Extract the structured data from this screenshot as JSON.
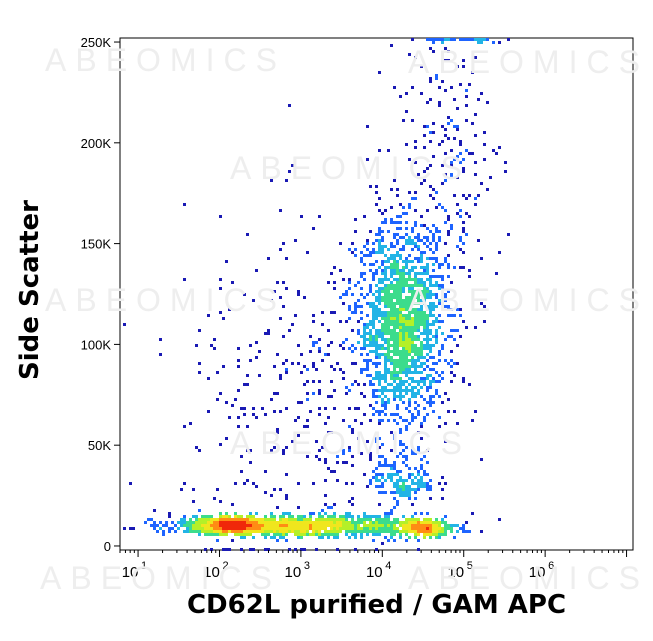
{
  "watermark": "ABEOMICS",
  "chart_data": {
    "type": "scatter",
    "title": "",
    "xlabel": "CD62L purified / GAM APC",
    "ylabel": "Side Scatter",
    "x_scale": "log",
    "xlim": [
      6,
      12000000
    ],
    "ylim": [
      -2000,
      252000
    ],
    "x_ticks": [
      {
        "value": 10,
        "base": "10",
        "exp": "1"
      },
      {
        "value": 100,
        "base": "10",
        "exp": "2"
      },
      {
        "value": 1000,
        "base": "10",
        "exp": "3"
      },
      {
        "value": 10000,
        "base": "10",
        "exp": "4"
      },
      {
        "value": 100000,
        "base": "10",
        "exp": "5"
      },
      {
        "value": 1000000,
        "base": "10",
        "exp": "6"
      }
    ],
    "y_ticks": [
      {
        "value": 0,
        "label": "0"
      },
      {
        "value": 50000,
        "label": "50K"
      },
      {
        "value": 100000,
        "label": "100K"
      },
      {
        "value": 150000,
        "label": "150K"
      },
      {
        "value": 200000,
        "label": "200K"
      },
      {
        "value": 250000,
        "label": "250K"
      }
    ],
    "colormap": [
      "#1a1ab4",
      "#1e64ff",
      "#22b4e6",
      "#3cdc8c",
      "#b4f028",
      "#f0e61e",
      "#ff8c14",
      "#f0280a"
    ],
    "grid": false,
    "populations": [
      {
        "name": "large side-scatter cluster",
        "center": [
          18000,
          110000
        ],
        "spread": [
          0.28,
          24000
        ],
        "count": 1700
      },
      {
        "name": "upper tail",
        "center": [
          60000,
          190000
        ],
        "spread": [
          0.35,
          35000
        ],
        "count": 220
      },
      {
        "name": "low-scatter band",
        "center": [
          900,
          10000
        ],
        "spread": [
          0.75,
          2500
        ],
        "count": 1300
      },
      {
        "name": "dense left band",
        "center": [
          130,
          10500
        ],
        "spread": [
          0.22,
          2000
        ],
        "count": 450
      },
      {
        "name": "dense right band",
        "center": [
          30000,
          9000
        ],
        "spread": [
          0.18,
          2000
        ],
        "count": 380
      },
      {
        "name": "mid cluster",
        "center": [
          18000,
          33000
        ],
        "spread": [
          0.2,
          6000
        ],
        "count": 160
      },
      {
        "name": "diffuse background",
        "center": [
          1500,
          70000
        ],
        "spread": [
          0.8,
          45000
        ],
        "count": 420
      },
      {
        "name": "top saturation",
        "center": [
          100000,
          251000
        ],
        "spread": [
          0.25,
          500
        ],
        "count": 60
      }
    ]
  }
}
